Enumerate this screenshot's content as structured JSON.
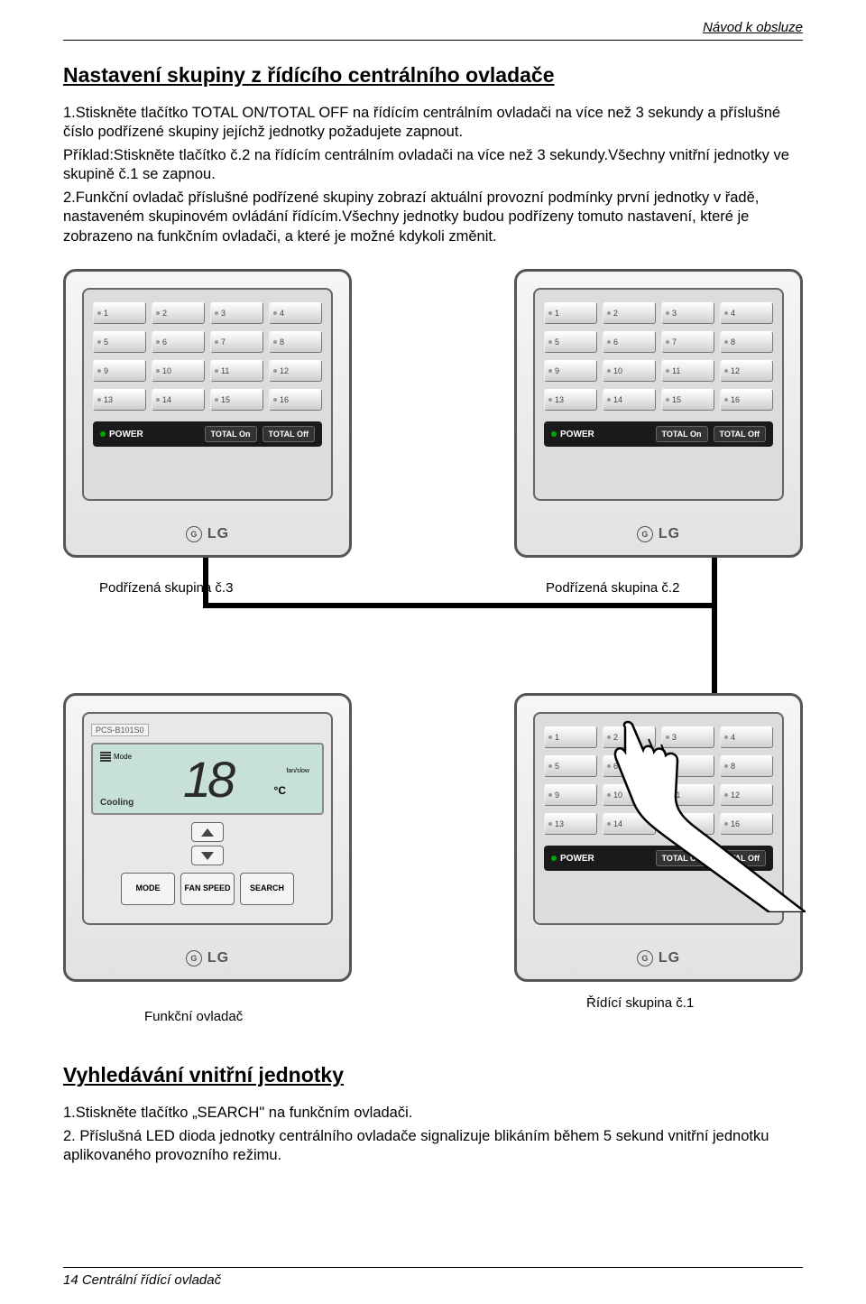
{
  "header": {
    "right": "Návod k obsluze"
  },
  "section1": {
    "title": "Nastavení skupiny z řídícího centrálního ovladače",
    "p1": "1.Stiskněte tlačítko TOTAL ON/TOTAL OFF na řídícím centrálním ovladači na více než 3 sekundy a příslušné číslo podřízené skupiny jejíchž jednotky požadujete zapnout.",
    "p2": "Příklad:Stiskněte tlačítko č.2 na řídícím centrálním ovladači na více než 3 sekundy.Všechny vnitřní jednotky ve skupině č.1 se zapnou.",
    "p3": "2.Funkční ovladač příslušné podřízené skupiny zobrazí aktuální provozní podmínky první jednotky v řadě, nastaveném skupinovém ovládání řídícím.Všechny jednotky budou podřízeny tomuto nastavení, které je zobrazeno na funkčním ovladači, a které je možné kdykoli změnit."
  },
  "panel": {
    "numbers": [
      "1",
      "2",
      "3",
      "4",
      "5",
      "6",
      "7",
      "8",
      "9",
      "10",
      "11",
      "12",
      "13",
      "14",
      "15",
      "16"
    ],
    "power": "POWER",
    "totalOn": "TOTAL On",
    "totalOff": "TOTAL Off",
    "brand": "LG"
  },
  "captions": {
    "sub3": "Podřízená skupina č.3",
    "sub2": "Podřízená skupina č.2",
    "func": "Funkční ovladač",
    "master1": "Řídící skupina č.1"
  },
  "func": {
    "model": "PCS-B101S0",
    "temp": "18",
    "unit": "°C",
    "cooling": "Cooling",
    "fanlabel": "fan/slow",
    "modeLbl": "Mode",
    "mode": "MODE",
    "fan": "FAN SPEED",
    "search": "SEARCH"
  },
  "section2": {
    "title": "Vyhledávání vnitřní jednotky",
    "p1": "1.Stiskněte tlačítko „SEARCH\" na funkčním ovladači.",
    "p2": "2. Příslušná LED dioda jednotky centrálního ovladače signalizuje blikáním během 5 sekund vnitřní jednotku aplikovaného provozního režimu."
  },
  "footer": {
    "text": "14 Centrální řídící ovladač"
  }
}
